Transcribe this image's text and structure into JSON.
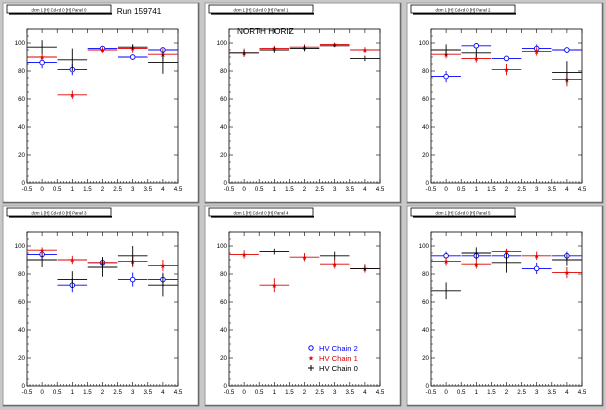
{
  "run_label": "Run 159741",
  "legend": {
    "entries": [
      {
        "label": "HV Chain 2",
        "color": "#0000ff",
        "marker": "circle"
      },
      {
        "label": "HV Chain 1",
        "color": "#e00000",
        "marker": "star"
      },
      {
        "label": "HV Chain 0",
        "color": "#000000",
        "marker": "plus"
      }
    ]
  },
  "chart_data": [
    {
      "type": "scatter",
      "title": "dcm 1 [H] Cd-rd 0 [H] Panel 0",
      "annotation": "Run 159741",
      "xlim": [
        -0.5,
        4.5
      ],
      "ylim": [
        0,
        110
      ],
      "xticks": [
        "-0.5",
        "0",
        "0.5",
        "1",
        "1.5",
        "2",
        "2.5",
        "3",
        "3.5",
        "4",
        "4.5"
      ],
      "yticks": [
        "0",
        "20",
        "40",
        "60",
        "80",
        "100"
      ],
      "series": [
        {
          "name": "HV Chain 2",
          "color": "#0000ff",
          "marker": "circle",
          "points": [
            [
              0,
              86,
              4
            ],
            [
              1,
              81,
              4
            ],
            [
              2,
              96,
              2
            ],
            [
              3,
              90,
              2
            ],
            [
              4,
              95,
              2
            ]
          ]
        },
        {
          "name": "HV Chain 1",
          "color": "#e00000",
          "marker": "star",
          "points": [
            [
              0,
              90,
              2
            ],
            [
              1,
              63,
              3
            ],
            [
              2,
              95,
              2
            ],
            [
              3,
              96,
              3
            ],
            [
              4,
              92,
              4
            ]
          ]
        },
        {
          "name": "HV Chain 0",
          "color": "#000000",
          "marker": "plus",
          "points": [
            [
              0,
              97,
              5
            ],
            [
              1,
              88,
              8
            ],
            [
              3,
              97,
              2
            ],
            [
              4,
              86,
              8
            ]
          ]
        }
      ]
    },
    {
      "type": "scatter",
      "title": "dcm 1 [H] Cd-rd 0 [H] Panel 1",
      "annotation": "NORTH HORIZ",
      "xlim": [
        -0.5,
        4.5
      ],
      "ylim": [
        0,
        110
      ],
      "xticks": [
        "-0.5",
        "0",
        "0.5",
        "1",
        "1.5",
        "2",
        "2.5",
        "3",
        "3.5",
        "4",
        "4.5"
      ],
      "yticks": [
        "0",
        "20",
        "40",
        "60",
        "80",
        "100"
      ],
      "series": [
        {
          "name": "HV Chain 2",
          "color": "#0000ff",
          "marker": "circle",
          "points": []
        },
        {
          "name": "HV Chain 1",
          "color": "#e00000",
          "marker": "star",
          "points": [
            [
              0,
              93,
              3
            ],
            [
              1,
              96,
              2
            ],
            [
              2,
              97,
              2
            ],
            [
              3,
              99,
              1
            ],
            [
              4,
              95,
              2
            ]
          ]
        },
        {
          "name": "HV Chain 0",
          "color": "#000000",
          "marker": "plus",
          "points": [
            [
              0,
              93,
              2
            ],
            [
              1,
              95,
              2
            ],
            [
              2,
              96,
              2
            ],
            [
              3,
              98,
              1
            ],
            [
              4,
              89,
              2
            ]
          ]
        }
      ]
    },
    {
      "type": "scatter",
      "title": "dcm 1 [H] Cd-rd 0 [H] Panel 2",
      "annotation": "",
      "xlim": [
        -0.5,
        4.5
      ],
      "ylim": [
        0,
        110
      ],
      "xticks": [
        "-0.5",
        "0",
        "0.5",
        "1",
        "1.5",
        "2",
        "2.5",
        "3",
        "3.5",
        "4",
        "4.5"
      ],
      "yticks": [
        "0",
        "20",
        "40",
        "60",
        "80",
        "100"
      ],
      "series": [
        {
          "name": "HV Chain 2",
          "color": "#0000ff",
          "marker": "circle",
          "points": [
            [
              0,
              76,
              4
            ],
            [
              1,
              98,
              2
            ],
            [
              2,
              89,
              2
            ],
            [
              3,
              96,
              3
            ],
            [
              4,
              95,
              2
            ]
          ]
        },
        {
          "name": "HV Chain 1",
          "color": "#e00000",
          "marker": "star",
          "points": [
            [
              0,
              92,
              3
            ],
            [
              1,
              89,
              3
            ],
            [
              2,
              81,
              4
            ],
            [
              3,
              94,
              3
            ],
            [
              4,
              74,
              5
            ]
          ]
        },
        {
          "name": "HV Chain 0",
          "color": "#000000",
          "marker": "plus",
          "points": [
            [
              0,
              95,
              4
            ],
            [
              1,
              93,
              3
            ],
            [
              4,
              79,
              8
            ]
          ]
        }
      ]
    },
    {
      "type": "scatter",
      "title": "dcm 1 [H] Cd-rd 0 [H] Panel 3",
      "annotation": "",
      "xlim": [
        -0.5,
        4.5
      ],
      "ylim": [
        0,
        110
      ],
      "xticks": [
        "-0.5",
        "0",
        "0.5",
        "1",
        "1.5",
        "2",
        "2.5",
        "3",
        "3.5",
        "4",
        "4.5"
      ],
      "yticks": [
        "0",
        "20",
        "40",
        "60",
        "80",
        "100"
      ],
      "series": [
        {
          "name": "HV Chain 2",
          "color": "#0000ff",
          "marker": "circle",
          "points": [
            [
              0,
              94,
              3
            ],
            [
              1,
              72,
              5
            ],
            [
              2,
              88,
              4
            ],
            [
              3,
              76,
              5
            ],
            [
              4,
              76,
              5
            ]
          ]
        },
        {
          "name": "HV Chain 1",
          "color": "#e00000",
          "marker": "star",
          "points": [
            [
              0,
              97,
              2
            ],
            [
              1,
              90,
              3
            ],
            [
              2,
              88,
              3
            ],
            [
              3,
              89,
              4
            ],
            [
              4,
              86,
              4
            ]
          ]
        },
        {
          "name": "HV Chain 0",
          "color": "#000000",
          "marker": "plus",
          "points": [
            [
              0,
              90,
              5
            ],
            [
              1,
              76,
              6
            ],
            [
              2,
              85,
              7
            ],
            [
              3,
              93,
              7
            ],
            [
              4,
              72,
              8
            ]
          ]
        }
      ]
    },
    {
      "type": "scatter",
      "title": "dcm 1 [H] Cd-rd 0 [H] Panel 4",
      "annotation": "",
      "xlim": [
        -0.5,
        4.5
      ],
      "ylim": [
        0,
        110
      ],
      "xticks": [
        "-0.5",
        "0",
        "0.5",
        "1",
        "1.5",
        "2",
        "2.5",
        "3",
        "3.5",
        "4",
        "4.5"
      ],
      "yticks": [
        "0",
        "20",
        "40",
        "60",
        "80",
        "100"
      ],
      "series": [
        {
          "name": "HV Chain 2",
          "color": "#0000ff",
          "marker": "circle",
          "points": []
        },
        {
          "name": "HV Chain 1",
          "color": "#e00000",
          "marker": "star",
          "points": [
            [
              0,
              94,
              3
            ],
            [
              1,
              72,
              5
            ],
            [
              2,
              92,
              3
            ],
            [
              3,
              87,
              3
            ],
            [
              4,
              84,
              3
            ]
          ]
        },
        {
          "name": "HV Chain 0",
          "color": "#000000",
          "marker": "plus",
          "points": [
            [
              1,
              96,
              2
            ],
            [
              3,
              93,
              3
            ],
            [
              4,
              84,
              2
            ]
          ]
        }
      ]
    },
    {
      "type": "scatter",
      "title": "dcm 1 [H] Cd-rd 0 [H] Panel 5",
      "annotation": "",
      "xlim": [
        -0.5,
        4.5
      ],
      "ylim": [
        0,
        110
      ],
      "xticks": [
        "-0.5",
        "0",
        "0.5",
        "1",
        "1.5",
        "2",
        "2.5",
        "3",
        "3.5",
        "4",
        "4.5"
      ],
      "yticks": [
        "0",
        "20",
        "40",
        "60",
        "80",
        "100"
      ],
      "series": [
        {
          "name": "HV Chain 2",
          "color": "#0000ff",
          "marker": "circle",
          "points": [
            [
              0,
              93,
              3
            ],
            [
              1,
              93,
              3
            ],
            [
              2,
              93,
              3
            ],
            [
              3,
              84,
              4
            ],
            [
              4,
              93,
              3
            ]
          ]
        },
        {
          "name": "HV Chain 1",
          "color": "#e00000",
          "marker": "star",
          "points": [
            [
              0,
              89,
              3
            ],
            [
              1,
              87,
              3
            ],
            [
              2,
              96,
              2
            ],
            [
              3,
              93,
              3
            ],
            [
              4,
              81,
              4
            ]
          ]
        },
        {
          "name": "HV Chain 0",
          "color": "#000000",
          "marker": "plus",
          "points": [
            [
              0,
              68,
              6
            ],
            [
              1,
              95,
              4
            ],
            [
              2,
              88,
              7
            ],
            [
              4,
              90,
              4
            ]
          ]
        }
      ]
    }
  ]
}
